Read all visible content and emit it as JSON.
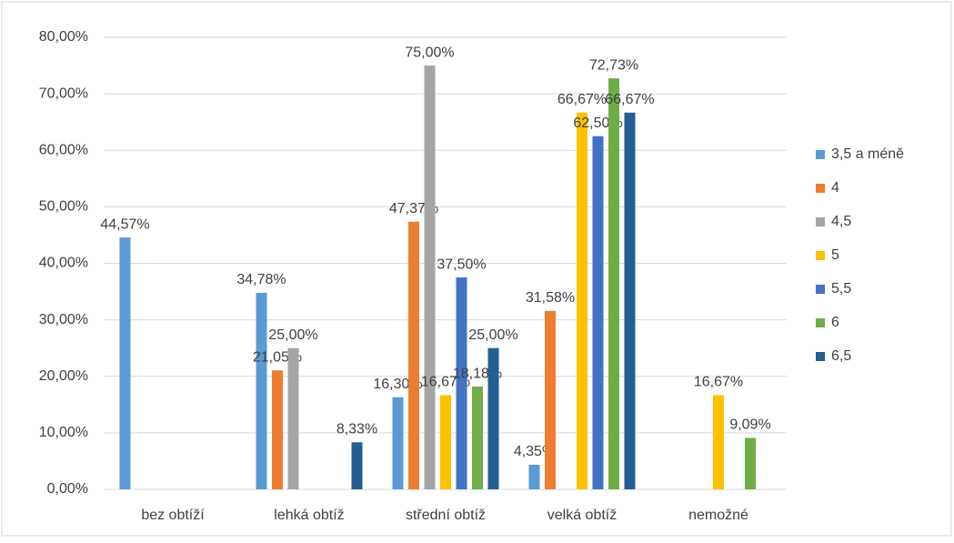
{
  "chart_data": {
    "type": "bar",
    "categories": [
      "bez obtíží",
      "lehká obtíž",
      "střední obtíž",
      "velká obtíž",
      "nemožné"
    ],
    "series": [
      {
        "name": "3,5 a méně",
        "color": "#5b9bd5",
        "values": [
          44.57,
          34.78,
          16.3,
          4.35,
          null
        ],
        "value_labels": [
          "44,57%",
          "34,78%",
          "16,30%",
          "4,35%",
          null
        ]
      },
      {
        "name": "4",
        "color": "#ed7d31",
        "values": [
          null,
          21.05,
          47.37,
          31.58,
          null
        ],
        "value_labels": [
          null,
          "21,05%",
          "47,37%",
          "31,58%",
          null
        ]
      },
      {
        "name": "4,5",
        "color": "#a5a5a5",
        "values": [
          null,
          25.0,
          75.0,
          null,
          null
        ],
        "value_labels": [
          null,
          "25,00%",
          "75,00%",
          null,
          null
        ]
      },
      {
        "name": "5",
        "color": "#ffc000",
        "values": [
          null,
          null,
          16.67,
          66.67,
          16.67
        ],
        "value_labels": [
          null,
          null,
          "16,67%",
          "66,67%",
          "16,67%"
        ]
      },
      {
        "name": "5,5",
        "color": "#4472c4",
        "values": [
          null,
          null,
          37.5,
          62.5,
          null
        ],
        "value_labels": [
          null,
          null,
          "37,50%",
          "62,50%",
          null
        ]
      },
      {
        "name": "6",
        "color": "#70ad47",
        "values": [
          null,
          null,
          18.18,
          72.73,
          9.09
        ],
        "value_labels": [
          null,
          null,
          "18,18%",
          "72,73%",
          "9,09%"
        ]
      },
      {
        "name": "6,5",
        "color": "#255e91",
        "values": [
          null,
          8.33,
          25.0,
          66.67,
          null
        ],
        "value_labels": [
          null,
          "8,33%",
          "25,00%",
          "66,67%",
          null
        ]
      }
    ],
    "ylim": [
      0,
      80
    ],
    "yticks": [
      {
        "value": 0,
        "label": "0,00%"
      },
      {
        "value": 10,
        "label": "10,00%"
      },
      {
        "value": 20,
        "label": "20,00%"
      },
      {
        "value": 30,
        "label": "30,00%"
      },
      {
        "value": 40,
        "label": "40,00%"
      },
      {
        "value": 50,
        "label": "50,00%"
      },
      {
        "value": 60,
        "label": "60,00%"
      },
      {
        "value": 70,
        "label": "70,00%"
      },
      {
        "value": 80,
        "label": "80,00%"
      }
    ],
    "grid": true,
    "legend": "right"
  }
}
